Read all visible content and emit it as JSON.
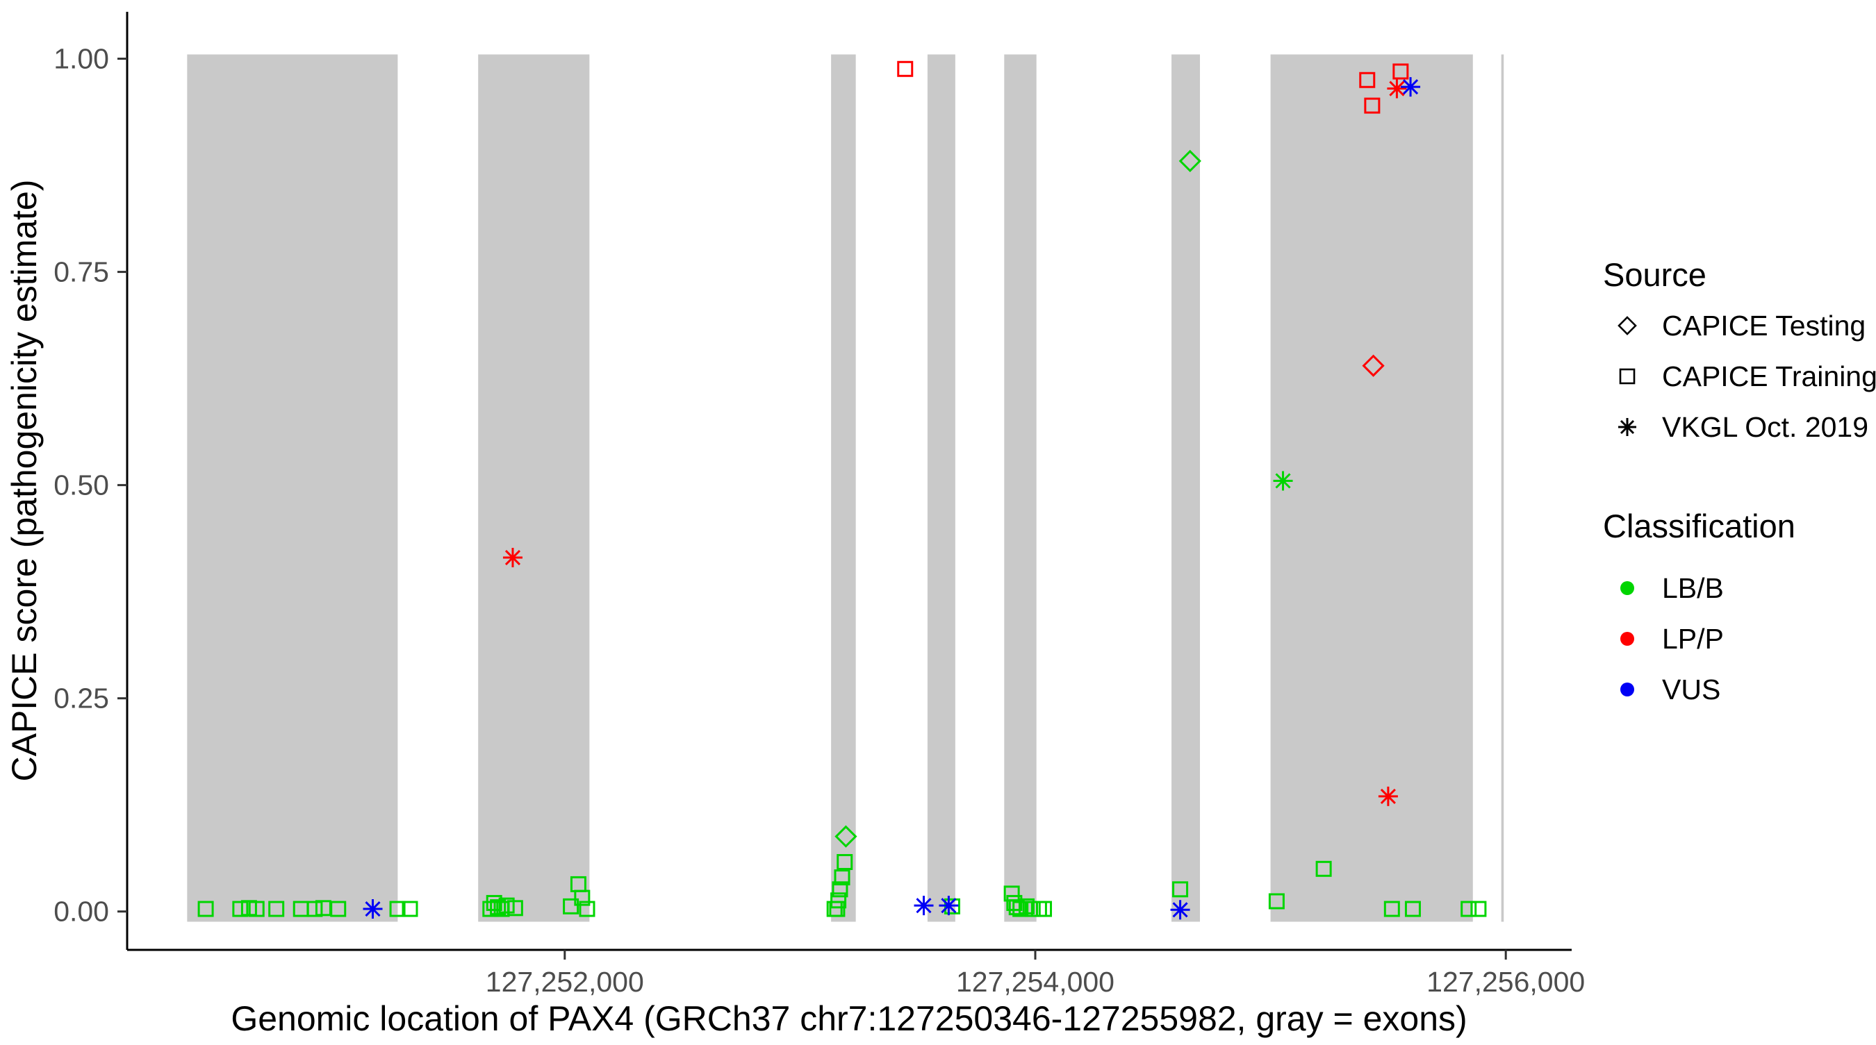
{
  "legend": {
    "source_title": "Source",
    "classification_title": "Classification"
  },
  "chart_data": {
    "type": "scatter",
    "title": "",
    "xlabel": "Genomic location of PAX4 (GRCh37 chr7:127250346-127255982, gray = exons)",
    "ylabel": "CAPICE score (pathogenicity estimate)",
    "xlim": [
      127250140,
      127256280
    ],
    "ylim": [
      -0.045,
      1.055
    ],
    "x_ticks": [
      {
        "value": 127252000,
        "label": "127,252,000"
      },
      {
        "value": 127254000,
        "label": "127,254,000"
      },
      {
        "value": 127256000,
        "label": "127,256,000"
      }
    ],
    "y_ticks": [
      {
        "value": 0.0,
        "label": "0.00"
      },
      {
        "value": 0.25,
        "label": "0.25"
      },
      {
        "value": 0.5,
        "label": "0.50"
      },
      {
        "value": 0.75,
        "label": "0.75"
      },
      {
        "value": 1.0,
        "label": "1.00"
      }
    ],
    "grid": false,
    "legend_position": "right",
    "exon_color": "#c9c9c9",
    "exon_band_y": [
      -0.012,
      1.005
    ],
    "exons": [
      [
        127250395,
        127251290
      ],
      [
        127251632,
        127252105
      ],
      [
        127253132,
        127253237
      ],
      [
        127253542,
        127253660
      ],
      [
        127253868,
        127254005
      ],
      [
        127254579,
        127254700
      ],
      [
        127255000,
        127255860
      ]
    ],
    "gene_boundary_line": 127255986,
    "classification": [
      {
        "label": "LB/B",
        "color": "#00d500"
      },
      {
        "label": "LP/P",
        "color": "#ff0000"
      },
      {
        "label": "VUS",
        "color": "#0000f5"
      }
    ],
    "series": [
      {
        "name": "CAPICE Testing",
        "shape": "diamond",
        "points": [
          [
            127253195,
            0.088,
            "LB/B"
          ],
          [
            127254658,
            0.88,
            "LB/B"
          ],
          [
            127255437,
            0.64,
            "LP/P"
          ]
        ]
      },
      {
        "name": "CAPICE Training",
        "shape": "square",
        "points": [
          [
            127250474,
            0.003,
            "LB/B"
          ],
          [
            127250621,
            0.003,
            "LB/B"
          ],
          [
            127250658,
            0.004,
            "LB/B"
          ],
          [
            127250690,
            0.003,
            "LB/B"
          ],
          [
            127250774,
            0.003,
            "LB/B"
          ],
          [
            127250879,
            0.003,
            "LB/B"
          ],
          [
            127250937,
            0.003,
            "LB/B"
          ],
          [
            127250974,
            0.004,
            "LB/B"
          ],
          [
            127251037,
            0.003,
            "LB/B"
          ],
          [
            127251289,
            0.003,
            "LB/B"
          ],
          [
            127251342,
            0.003,
            "LB/B"
          ],
          [
            127251684,
            0.003,
            "LB/B"
          ],
          [
            127251700,
            0.01,
            "LB/B"
          ],
          [
            127251716,
            0.005,
            "LB/B"
          ],
          [
            127251732,
            0.003,
            "LB/B"
          ],
          [
            127251753,
            0.007,
            "LB/B"
          ],
          [
            127251789,
            0.004,
            "LB/B"
          ],
          [
            127252026,
            0.006,
            "LB/B"
          ],
          [
            127252058,
            0.032,
            "LB/B"
          ],
          [
            127252074,
            0.016,
            "LB/B"
          ],
          [
            127252095,
            0.003,
            "LB/B"
          ],
          [
            127253147,
            0.003,
            "LB/B"
          ],
          [
            127253158,
            0.003,
            "LB/B"
          ],
          [
            127253163,
            0.013,
            "LB/B"
          ],
          [
            127253170,
            0.026,
            "LB/B"
          ],
          [
            127253179,
            0.04,
            "LB/B"
          ],
          [
            127253190,
            0.058,
            "LB/B"
          ],
          [
            127253447,
            0.988,
            "LP/P"
          ],
          [
            127253647,
            0.006,
            "LB/B"
          ],
          [
            127253900,
            0.021,
            "LB/B"
          ],
          [
            127253911,
            0.01,
            "LB/B"
          ],
          [
            127253921,
            0.005,
            "LB/B"
          ],
          [
            127253937,
            0.003,
            "LB/B"
          ],
          [
            127253963,
            0.006,
            "LB/B"
          ],
          [
            127253989,
            0.003,
            "LB/B"
          ],
          [
            127254016,
            0.003,
            "LB/B"
          ],
          [
            127254037,
            0.003,
            "LB/B"
          ],
          [
            127254616,
            0.026,
            "LB/B"
          ],
          [
            127255026,
            0.012,
            "LB/B"
          ],
          [
            127255226,
            0.05,
            "LB/B"
          ],
          [
            127255411,
            0.975,
            "LP/P"
          ],
          [
            127255432,
            0.945,
            "LP/P"
          ],
          [
            127255553,
            0.985,
            "LP/P"
          ],
          [
            127255516,
            0.003,
            "LB/B"
          ],
          [
            127255605,
            0.003,
            "LB/B"
          ],
          [
            127255842,
            0.003,
            "LB/B"
          ],
          [
            127255884,
            0.003,
            "LB/B"
          ]
        ]
      },
      {
        "name": "VKGL Oct. 2019",
        "shape": "asterisk",
        "points": [
          [
            127251184,
            0.003,
            "VUS"
          ],
          [
            127251779,
            0.415,
            "LP/P"
          ],
          [
            127253526,
            0.007,
            "VUS"
          ],
          [
            127253632,
            0.007,
            "VUS"
          ],
          [
            127254616,
            0.002,
            "VUS"
          ],
          [
            127255053,
            0.505,
            "LB/B"
          ],
          [
            127255500,
            0.135,
            "LP/P"
          ],
          [
            127255537,
            0.965,
            "LP/P"
          ],
          [
            127255595,
            0.967,
            "VUS"
          ]
        ]
      }
    ]
  }
}
